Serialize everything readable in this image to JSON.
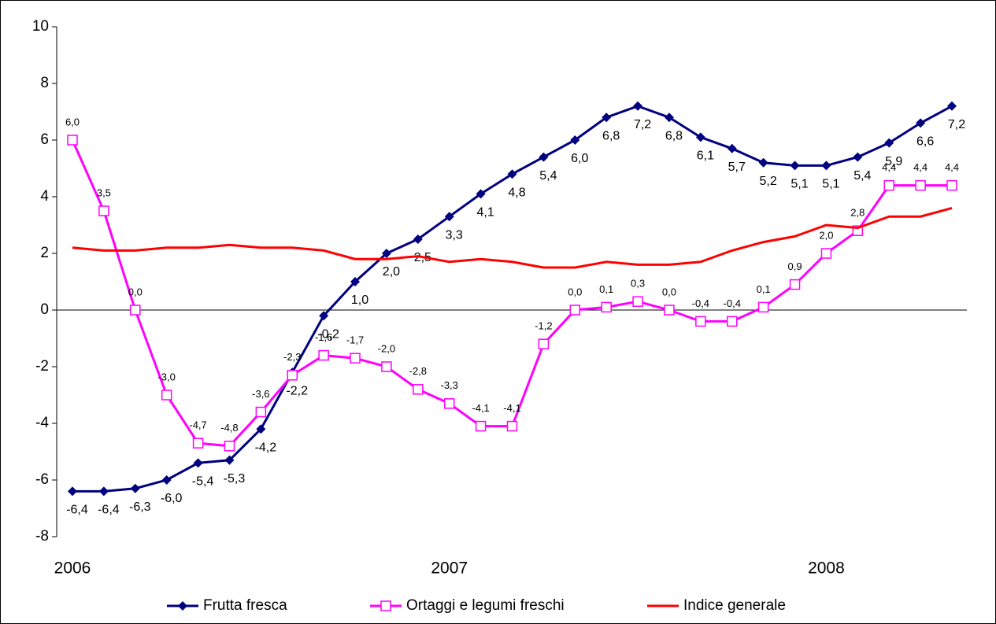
{
  "chart_data": {
    "type": "line",
    "categories": [
      "2006",
      null,
      null,
      null,
      null,
      null,
      null,
      null,
      null,
      null,
      null,
      null,
      "2007",
      null,
      null,
      null,
      null,
      null,
      null,
      null,
      null,
      null,
      null,
      null,
      "2008",
      null,
      null,
      null,
      null
    ],
    "ylim": [
      -8,
      10
    ],
    "yticks": [
      -8,
      -6,
      -4,
      -2,
      0,
      2,
      4,
      6,
      8,
      10
    ],
    "series": [
      {
        "name": "Frutta fresca",
        "color": "#000080",
        "marker": "diamond",
        "values": [
          -6.4,
          -6.4,
          -6.3,
          -6.0,
          -5.4,
          -5.3,
          -4.2,
          -2.2,
          -0.2,
          1.0,
          2.0,
          2.5,
          3.3,
          4.1,
          4.8,
          5.4,
          6.0,
          6.8,
          7.2,
          6.8,
          6.1,
          5.7,
          5.2,
          5.1,
          5.1,
          5.4,
          5.9,
          6.6,
          7.2
        ],
        "value_labels": [
          "-6,4",
          "-6,4",
          "-6,3",
          "-6,0",
          "-5,4",
          "-5,3",
          "-4,2",
          "-2,2",
          "-0,2",
          "1,0",
          "2,0",
          "2,5",
          "3,3",
          "4,1",
          "4,8",
          "5,4",
          "6,0",
          "6,8",
          "7,2",
          "6,8",
          "6,1",
          "5,7",
          "5,2",
          "5,1",
          "5,1",
          "5,4",
          "5,9",
          "6,6",
          "7,2"
        ]
      },
      {
        "name": "Ortaggi e legumi freschi",
        "color": "#ff00ff",
        "marker": "square",
        "values": [
          6.0,
          3.5,
          0.0,
          -3.0,
          -4.7,
          -4.8,
          -3.6,
          -2.3,
          -1.6,
          -1.7,
          -2.0,
          -2.8,
          -3.3,
          -4.1,
          -4.1,
          -1.2,
          0.0,
          0.1,
          0.3,
          0.0,
          -0.4,
          -0.4,
          0.1,
          0.9,
          2.0,
          2.8,
          4.4,
          4.4,
          4.4
        ],
        "value_labels": [
          "6,0",
          "3,5",
          "0,0",
          "-3,0",
          "-4,7",
          "-4,8",
          "-3,6",
          "-2,3",
          "-1,6",
          "-1,7",
          "-2,0",
          "-2,8",
          "-3,3",
          "-4,1",
          "-4,1",
          "-1,2",
          "0,0",
          "0,1",
          "0,3",
          "0,0",
          "-0,4",
          "-0,4",
          "0,1",
          "0,9",
          "2,0",
          "2,8",
          "4,4",
          "4,4",
          "4,4"
        ]
      },
      {
        "name": "Indice generale",
        "color": "#ff0000",
        "marker": "none",
        "values": [
          2.2,
          2.1,
          2.1,
          2.2,
          2.2,
          2.3,
          2.2,
          2.2,
          2.1,
          1.8,
          1.8,
          1.9,
          1.7,
          1.8,
          1.7,
          1.5,
          1.5,
          1.7,
          1.6,
          1.6,
          1.7,
          2.1,
          2.4,
          2.6,
          3.0,
          2.9,
          3.3,
          3.3,
          3.6
        ]
      }
    ]
  }
}
